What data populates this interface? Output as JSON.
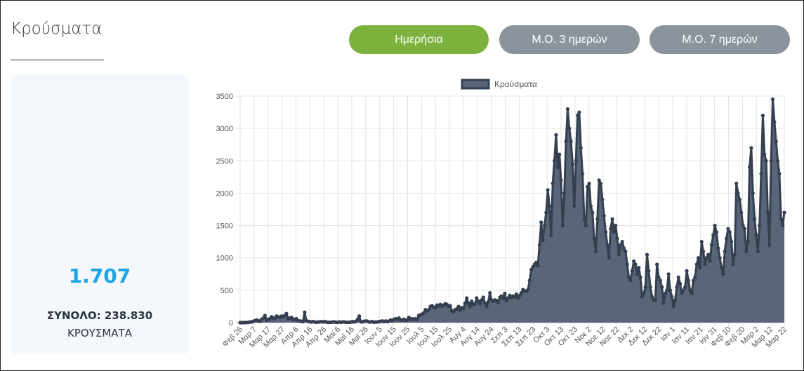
{
  "header": {
    "title": "Κρούσματα"
  },
  "toggles": {
    "daily": "Ημερήσια",
    "ma3": "Μ.Ο. 3 ημερών",
    "ma7": "Μ.Ο. 7 ημερών"
  },
  "summary": {
    "value": "1.707",
    "total": "ΣΥΝΟΛΟ: 238.830",
    "label": "ΚΡΟΥΣΜΑΤΑ"
  },
  "colors": {
    "active": "#7bb13c",
    "inactive": "#8b939d",
    "accent": "#1ea5e4",
    "series_fill": "#5a6578",
    "series_line": "#34404f"
  },
  "chart_data": {
    "type": "area",
    "legend": {
      "label": "Κρούσματα",
      "position": "top"
    },
    "ylim": [
      0,
      3500
    ],
    "yticks": [
      0,
      500,
      1000,
      1500,
      2000,
      2500,
      3000,
      3500
    ],
    "xticks": [
      "Φεβ 26",
      "Μαρ 7",
      "Μαρ 17",
      "Μαρ 27",
      "Απρ 6",
      "Απρ 16",
      "Απρ 26",
      "Μαϊ 6",
      "Μαϊ 16",
      "Μαϊ 26",
      "Ιουν 5",
      "Ιουν 15",
      "Ιουν 25",
      "Ιουλ 5",
      "Ιουλ 15",
      "Ιουλ 25",
      "Αυγ 4",
      "Αυγ 14",
      "Αυγ 24",
      "Σεπ 3",
      "Σεπ 13",
      "Σεπ 23",
      "Οκτ 3",
      "Οκτ 13",
      "Οκτ 23",
      "Νοε 2",
      "Νοε 12",
      "Νοε 22",
      "Δεκ 2",
      "Δεκ 12",
      "Δεκ 22",
      "Ιαν 1",
      "Ιαν 11",
      "Ιαν 21",
      "Ιαν 31",
      "Φεβ 10",
      "Φεβ 20",
      "Μαρ 2",
      "Μαρ 12",
      "Μαρ 22"
    ],
    "grid": true,
    "series": [
      {
        "name": "Κρούσματα",
        "values": [
          0,
          0,
          0,
          0,
          2,
          3,
          10,
          10,
          20,
          30,
          40,
          30,
          20,
          50,
          70,
          110,
          40,
          50,
          60,
          90,
          70,
          70,
          100,
          90,
          80,
          100,
          95,
          110,
          140,
          60,
          70,
          80,
          50,
          50,
          60,
          30,
          25,
          20,
          15,
          160,
          30,
          20,
          15,
          10,
          15,
          10,
          5,
          10,
          10,
          15,
          10,
          15,
          10,
          5,
          5,
          5,
          10,
          10,
          5,
          5,
          10,
          5,
          10,
          10,
          5,
          5,
          5,
          10,
          15,
          10,
          20,
          50,
          100,
          15,
          10,
          20,
          25,
          20,
          10,
          10,
          15,
          5,
          10,
          10,
          15,
          20,
          25,
          15,
          25,
          15,
          25,
          40,
          30,
          50,
          60,
          50,
          70,
          40,
          40,
          50,
          40,
          40,
          80,
          50,
          60,
          50,
          60,
          50,
          110,
          120,
          130,
          150,
          200,
          180,
          200,
          250,
          260,
          240,
          230,
          270,
          260,
          280,
          250,
          270,
          290,
          280,
          250,
          260,
          180,
          170,
          200,
          210,
          250,
          190,
          230,
          220,
          300,
          380,
          300,
          250,
          330,
          280,
          290,
          380,
          330,
          290,
          350,
          390,
          300,
          250,
          320,
          460,
          350,
          330,
          350,
          340,
          310,
          390,
          410,
          370,
          450,
          340,
          380,
          420,
          380,
          410,
          400,
          440,
          380,
          420,
          460,
          510,
          490,
          480,
          510,
          650,
          820,
          860,
          900,
          930,
          880,
          1200,
          1550,
          1270,
          1500,
          1700,
          2050,
          1800,
          1350,
          2150,
          2500,
          2900,
          2400,
          2600,
          2200,
          1500,
          2000,
          2800,
          3300,
          3000,
          2800,
          2450,
          1800,
          2500,
          3200,
          3250,
          2700,
          2300,
          1600,
          1500,
          2100,
          2150,
          1800,
          1700,
          1300,
          1100,
          1600,
          2200,
          2150,
          1900,
          1650,
          1400,
          1200,
          1000,
          1450,
          1600,
          1400,
          1500,
          1300,
          1050,
          1200,
          1250,
          1150,
          1100,
          900,
          700,
          650,
          800,
          950,
          900,
          750,
          850,
          700,
          400,
          450,
          550,
          1050,
          800,
          550,
          400,
          350,
          350,
          900,
          700,
          650,
          550,
          300,
          450,
          500,
          750,
          500,
          400,
          250,
          350,
          550,
          700,
          600,
          450,
          500,
          550,
          800,
          650,
          500,
          450,
          650,
          700,
          900,
          1000,
          850,
          1250,
          1100,
          900,
          1000,
          1050,
          950,
          1200,
          1350,
          1500,
          1400,
          1150,
          1000,
          850,
          750,
          1100,
          1300,
          1450,
          1400,
          1250,
          900,
          1050,
          2150,
          2000,
          1900,
          1700,
          1500,
          1450,
          1100,
          1250,
          2400,
          2700,
          2000,
          1600,
          1350,
          1100,
          1500,
          2300,
          3200,
          2600,
          2500,
          1700,
          1200,
          2500,
          3450,
          3100,
          2800,
          2500,
          2300,
          1600,
          1500,
          1700
        ]
      }
    ]
  }
}
